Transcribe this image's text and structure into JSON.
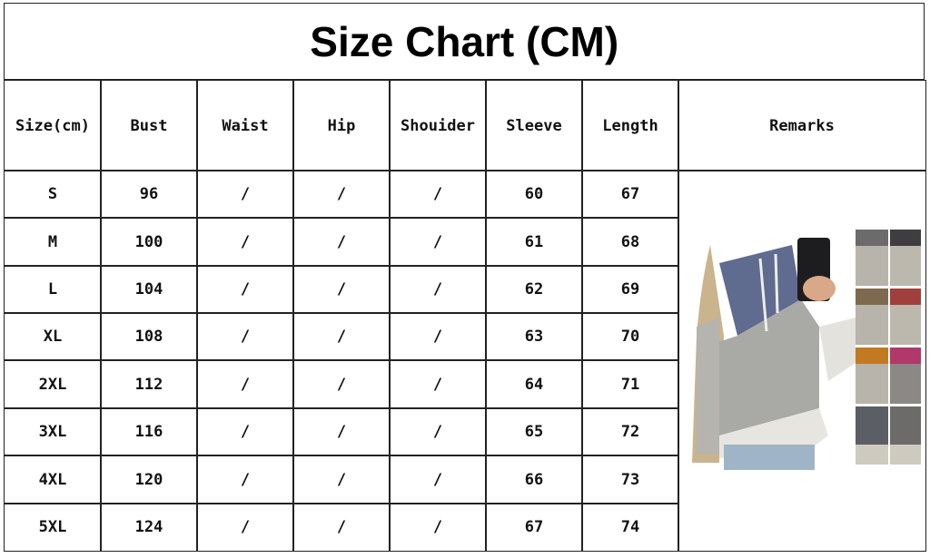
{
  "title": "Size Chart (CM)",
  "headers": [
    "Size(cm)",
    "Bust",
    "Waist",
    "Hip",
    "Shouider",
    "Sleeve",
    "Length",
    "Remarks"
  ],
  "rows": [
    [
      "S",
      "96",
      "/",
      "/",
      "/",
      "60",
      "67"
    ],
    [
      "M",
      "100",
      "/",
      "/",
      "/",
      "61",
      "68"
    ],
    [
      "L",
      "104",
      "/",
      "/",
      "/",
      "62",
      "69"
    ],
    [
      "XL",
      "108",
      "/",
      "/",
      "/",
      "63",
      "70"
    ],
    [
      "2XL",
      "112",
      "/",
      "/",
      "/",
      "64",
      "71"
    ],
    [
      "3XL",
      "116",
      "/",
      "/",
      "/",
      "65",
      "72"
    ],
    [
      "4XL",
      "120",
      "/",
      "/",
      "/",
      "66",
      "73"
    ],
    [
      "5XL",
      "124",
      "/",
      "/",
      "/",
      "67",
      "74"
    ]
  ],
  "remarks_image": "hoodie-product-photo",
  "colors": {
    "border": "#222222",
    "text": "#111111"
  }
}
